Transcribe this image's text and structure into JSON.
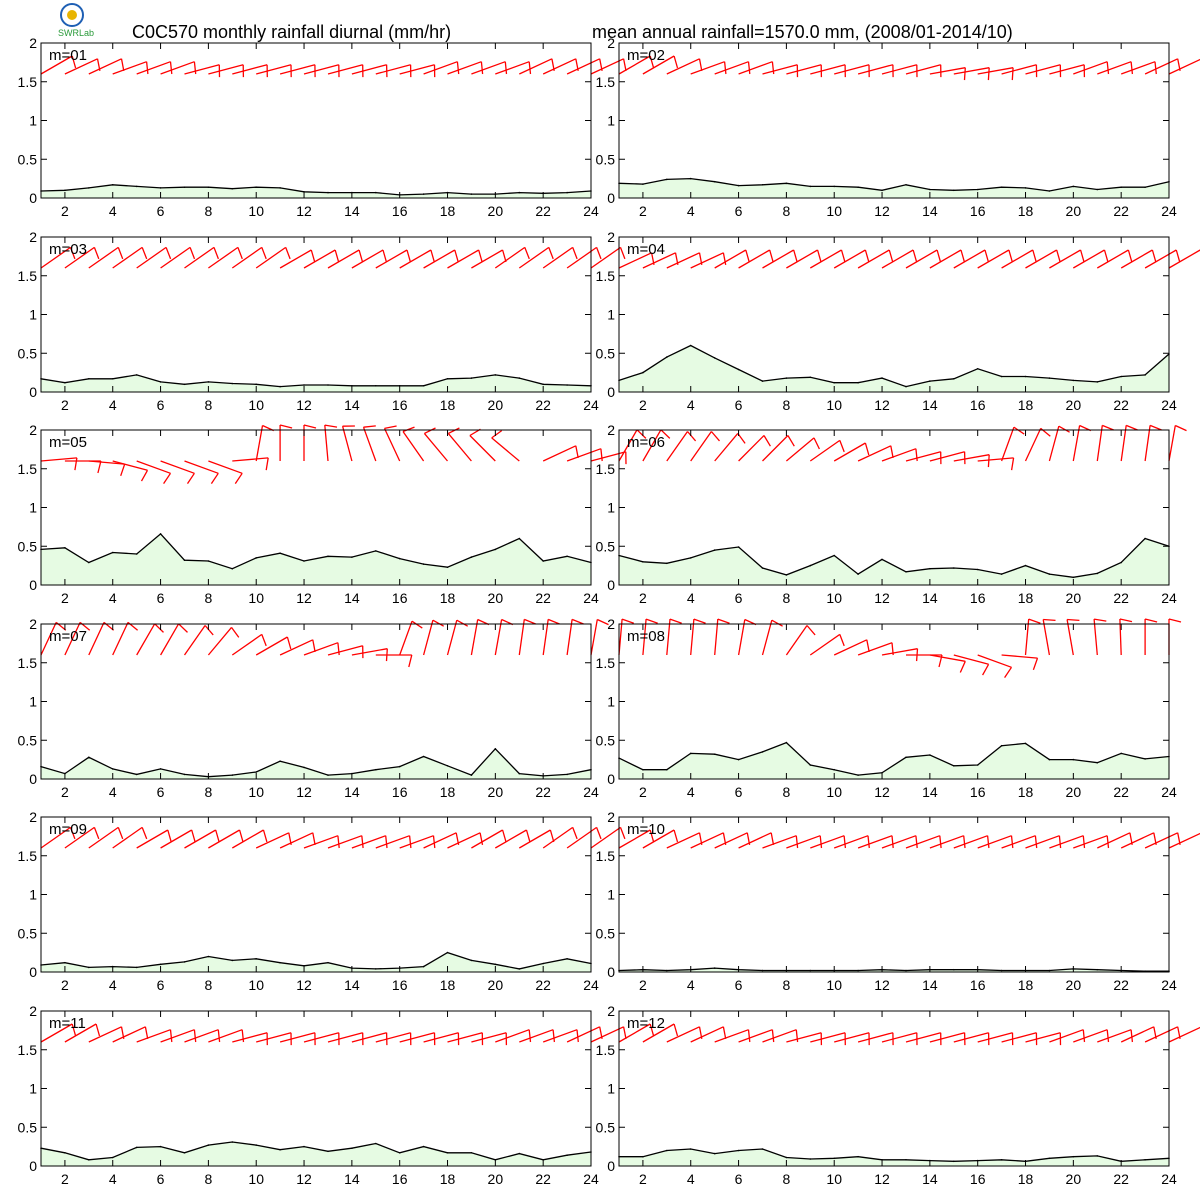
{
  "title_left": "C0C570 monthly rainfall diurnal (mm/hr)",
  "title_right": "mean annual rainfall=1570.0 mm, (2008/01-2014/10)",
  "logo": {
    "text": "SWRLab",
    "colors": [
      "#1e5fb4",
      "#e8b400",
      "#2a9a3a"
    ]
  },
  "colors": {
    "rain_fill": "#e6fbe3",
    "rain_line": "#000000",
    "wind_barb": "#ff0000",
    "frame": "#000000"
  },
  "chart_data": [
    {
      "type": "area",
      "label": "m=01",
      "x": [
        1,
        2,
        3,
        4,
        5,
        6,
        7,
        8,
        9,
        10,
        11,
        12,
        13,
        14,
        15,
        16,
        17,
        18,
        19,
        20,
        21,
        22,
        23,
        24
      ],
      "values": [
        0.09,
        0.1,
        0.13,
        0.17,
        0.15,
        0.13,
        0.14,
        0.14,
        0.12,
        0.14,
        0.13,
        0.08,
        0.07,
        0.07,
        0.07,
        0.04,
        0.05,
        0.07,
        0.05,
        0.05,
        0.07,
        0.06,
        0.07,
        0.09
      ],
      "wind_dir": [
        240,
        245,
        245,
        250,
        250,
        250,
        255,
        255,
        255,
        255,
        255,
        255,
        255,
        255,
        255,
        255,
        250,
        250,
        250,
        250,
        245,
        245,
        245,
        245
      ],
      "ylim": [
        0,
        2
      ],
      "yticks": [
        0,
        0.5,
        1,
        1.5,
        2
      ],
      "xticks": [
        2,
        4,
        6,
        8,
        10,
        12,
        14,
        16,
        18,
        20,
        22,
        24
      ]
    },
    {
      "type": "area",
      "label": "m=02",
      "x": [
        1,
        2,
        3,
        4,
        5,
        6,
        7,
        8,
        9,
        10,
        11,
        12,
        13,
        14,
        15,
        16,
        17,
        18,
        19,
        20,
        21,
        22,
        23,
        24
      ],
      "values": [
        0.19,
        0.18,
        0.24,
        0.25,
        0.21,
        0.16,
        0.17,
        0.19,
        0.15,
        0.15,
        0.14,
        0.1,
        0.17,
        0.11,
        0.1,
        0.11,
        0.14,
        0.13,
        0.09,
        0.15,
        0.11,
        0.14,
        0.14,
        0.21
      ],
      "wind_dir": [
        240,
        240,
        245,
        250,
        250,
        250,
        255,
        255,
        255,
        255,
        255,
        255,
        255,
        260,
        260,
        260,
        255,
        255,
        255,
        250,
        250,
        250,
        245,
        245
      ],
      "ylim": [
        0,
        2
      ],
      "yticks": [
        0,
        0.5,
        1,
        1.5,
        2
      ],
      "xticks": [
        2,
        4,
        6,
        8,
        10,
        12,
        14,
        16,
        18,
        20,
        22,
        24
      ]
    },
    {
      "type": "area",
      "label": "m=03",
      "x": [
        1,
        2,
        3,
        4,
        5,
        6,
        7,
        8,
        9,
        10,
        11,
        12,
        13,
        14,
        15,
        16,
        17,
        18,
        19,
        20,
        21,
        22,
        23,
        24
      ],
      "values": [
        0.17,
        0.12,
        0.17,
        0.17,
        0.22,
        0.13,
        0.1,
        0.13,
        0.11,
        0.1,
        0.07,
        0.09,
        0.09,
        0.08,
        0.08,
        0.08,
        0.08,
        0.17,
        0.18,
        0.22,
        0.18,
        0.1,
        0.09,
        0.08
      ],
      "wind_dir": [
        235,
        235,
        235,
        235,
        235,
        235,
        235,
        235,
        235,
        235,
        240,
        240,
        240,
        240,
        240,
        240,
        240,
        240,
        240,
        235,
        235,
        235,
        235,
        235
      ],
      "ylim": [
        0,
        2
      ],
      "yticks": [
        0,
        0.5,
        1,
        1.5,
        2
      ],
      "xticks": [
        2,
        4,
        6,
        8,
        10,
        12,
        14,
        16,
        18,
        20,
        22,
        24
      ]
    },
    {
      "type": "area",
      "label": "m=04",
      "x": [
        1,
        2,
        3,
        4,
        5,
        6,
        7,
        8,
        9,
        10,
        11,
        12,
        13,
        14,
        15,
        16,
        17,
        18,
        19,
        20,
        21,
        22,
        23,
        24
      ],
      "values": [
        0.15,
        0.25,
        0.45,
        0.6,
        0.44,
        0.29,
        0.14,
        0.18,
        0.19,
        0.12,
        0.12,
        0.18,
        0.07,
        0.14,
        0.17,
        0.3,
        0.2,
        0.2,
        0.18,
        0.15,
        0.13,
        0.2,
        0.22,
        0.49
      ],
      "wind_dir": [
        245,
        245,
        245,
        245,
        240,
        240,
        240,
        240,
        240,
        240,
        240,
        240,
        240,
        240,
        240,
        240,
        240,
        240,
        240,
        240,
        240,
        240,
        240,
        240
      ],
      "ylim": [
        0,
        2
      ],
      "yticks": [
        0,
        0.5,
        1,
        1.5,
        2
      ],
      "xticks": [
        2,
        4,
        6,
        8,
        10,
        12,
        14,
        16,
        18,
        20,
        22,
        24
      ]
    },
    {
      "type": "area",
      "label": "m=05",
      "x": [
        1,
        2,
        3,
        4,
        5,
        6,
        7,
        8,
        9,
        10,
        11,
        12,
        13,
        14,
        15,
        16,
        17,
        18,
        19,
        20,
        21,
        22,
        23,
        24
      ],
      "values": [
        0.46,
        0.48,
        0.29,
        0.42,
        0.4,
        0.66,
        0.32,
        0.31,
        0.21,
        0.35,
        0.41,
        0.31,
        0.37,
        0.36,
        0.44,
        0.34,
        0.27,
        0.23,
        0.36,
        0.46,
        0.6,
        0.31,
        0.37,
        0.29
      ],
      "wind_dir": [
        265,
        270,
        275,
        285,
        290,
        290,
        290,
        290,
        265,
        190,
        180,
        180,
        175,
        165,
        160,
        155,
        145,
        140,
        140,
        135,
        130,
        245,
        250,
        255
      ],
      "ylim": [
        0,
        2
      ],
      "yticks": [
        0,
        0.5,
        1,
        1.5,
        2
      ],
      "xticks": [
        2,
        4,
        6,
        8,
        10,
        12,
        14,
        16,
        18,
        20,
        22,
        24
      ]
    },
    {
      "type": "area",
      "label": "m=06",
      "x": [
        1,
        2,
        3,
        4,
        5,
        6,
        7,
        8,
        9,
        10,
        11,
        12,
        13,
        14,
        15,
        16,
        17,
        18,
        19,
        20,
        21,
        22,
        23,
        24
      ],
      "values": [
        0.38,
        0.3,
        0.28,
        0.35,
        0.45,
        0.49,
        0.22,
        0.13,
        0.25,
        0.38,
        0.14,
        0.33,
        0.17,
        0.21,
        0.22,
        0.2,
        0.14,
        0.25,
        0.14,
        0.1,
        0.15,
        0.29,
        0.6,
        0.5
      ],
      "wind_dir": [
        210,
        210,
        215,
        215,
        220,
        225,
        225,
        230,
        235,
        240,
        245,
        250,
        255,
        255,
        260,
        265,
        200,
        205,
        195,
        190,
        188,
        188,
        188,
        190
      ],
      "ylim": [
        0,
        2
      ],
      "yticks": [
        0,
        0.5,
        1,
        1.5,
        2
      ],
      "xticks": [
        2,
        4,
        6,
        8,
        10,
        12,
        14,
        16,
        18,
        20,
        22,
        24
      ]
    },
    {
      "type": "area",
      "label": "m=07",
      "x": [
        1,
        2,
        3,
        4,
        5,
        6,
        7,
        8,
        9,
        10,
        11,
        12,
        13,
        14,
        15,
        16,
        17,
        18,
        19,
        20,
        21,
        22,
        23,
        24
      ],
      "values": [
        0.16,
        0.07,
        0.28,
        0.13,
        0.06,
        0.13,
        0.06,
        0.03,
        0.05,
        0.09,
        0.23,
        0.15,
        0.05,
        0.07,
        0.12,
        0.16,
        0.29,
        0.17,
        0.05,
        0.39,
        0.07,
        0.04,
        0.06,
        0.12
      ],
      "wind_dir": [
        205,
        205,
        205,
        205,
        210,
        210,
        215,
        220,
        235,
        240,
        245,
        250,
        255,
        260,
        270,
        200,
        195,
        195,
        190,
        190,
        188,
        188,
        188,
        190
      ],
      "ylim": [
        0,
        2
      ],
      "yticks": [
        0,
        0.5,
        1,
        1.5,
        2
      ],
      "xticks": [
        2,
        4,
        6,
        8,
        10,
        12,
        14,
        16,
        18,
        20,
        22,
        24
      ]
    },
    {
      "type": "area",
      "label": "m=08",
      "x": [
        1,
        2,
        3,
        4,
        5,
        6,
        7,
        8,
        9,
        10,
        11,
        12,
        13,
        14,
        15,
        16,
        17,
        18,
        19,
        20,
        21,
        22,
        23,
        24
      ],
      "values": [
        0.27,
        0.12,
        0.12,
        0.33,
        0.32,
        0.25,
        0.35,
        0.47,
        0.18,
        0.12,
        0.05,
        0.08,
        0.28,
        0.31,
        0.17,
        0.18,
        0.43,
        0.46,
        0.25,
        0.25,
        0.21,
        0.33,
        0.26,
        0.29
      ],
      "wind_dir": [
        185,
        185,
        185,
        185,
        185,
        190,
        195,
        215,
        235,
        245,
        250,
        260,
        270,
        280,
        285,
        290,
        275,
        185,
        170,
        170,
        175,
        178,
        180,
        180
      ],
      "ylim": [
        0,
        2
      ],
      "yticks": [
        0,
        0.5,
        1,
        1.5,
        2
      ],
      "xticks": [
        2,
        4,
        6,
        8,
        10,
        12,
        14,
        16,
        18,
        20,
        22,
        24
      ]
    },
    {
      "type": "area",
      "label": "m=09",
      "x": [
        1,
        2,
        3,
        4,
        5,
        6,
        7,
        8,
        9,
        10,
        11,
        12,
        13,
        14,
        15,
        16,
        17,
        18,
        19,
        20,
        21,
        22,
        23,
        24
      ],
      "values": [
        0.09,
        0.12,
        0.06,
        0.07,
        0.06,
        0.1,
        0.13,
        0.2,
        0.15,
        0.17,
        0.12,
        0.08,
        0.12,
        0.05,
        0.04,
        0.05,
        0.07,
        0.25,
        0.15,
        0.1,
        0.04,
        0.11,
        0.17,
        0.11
      ],
      "wind_dir": [
        235,
        235,
        235,
        235,
        240,
        240,
        240,
        240,
        240,
        245,
        245,
        250,
        250,
        250,
        250,
        250,
        245,
        245,
        240,
        240,
        240,
        235,
        235,
        235
      ],
      "ylim": [
        0,
        2
      ],
      "yticks": [
        0,
        0.5,
        1,
        1.5,
        2
      ],
      "xticks": [
        2,
        4,
        6,
        8,
        10,
        12,
        14,
        16,
        18,
        20,
        22,
        24
      ]
    },
    {
      "type": "area",
      "label": "m=10",
      "x": [
        1,
        2,
        3,
        4,
        5,
        6,
        7,
        8,
        9,
        10,
        11,
        12,
        13,
        14,
        15,
        16,
        17,
        18,
        19,
        20,
        21,
        22,
        23,
        24
      ],
      "values": [
        0.02,
        0.03,
        0.02,
        0.03,
        0.05,
        0.03,
        0.02,
        0.02,
        0.02,
        0.02,
        0.02,
        0.03,
        0.02,
        0.03,
        0.03,
        0.03,
        0.02,
        0.02,
        0.02,
        0.04,
        0.03,
        0.02,
        0.01,
        0.01
      ],
      "wind_dir": [
        240,
        240,
        245,
        245,
        245,
        245,
        250,
        250,
        250,
        250,
        250,
        250,
        250,
        250,
        250,
        250,
        250,
        250,
        250,
        250,
        245,
        245,
        245,
        245
      ],
      "ylim": [
        0,
        2
      ],
      "yticks": [
        0,
        0.5,
        1,
        1.5,
        2
      ],
      "xticks": [
        2,
        4,
        6,
        8,
        10,
        12,
        14,
        16,
        18,
        20,
        22,
        24
      ]
    },
    {
      "type": "area",
      "label": "m=11",
      "x": [
        1,
        2,
        3,
        4,
        5,
        6,
        7,
        8,
        9,
        10,
        11,
        12,
        13,
        14,
        15,
        16,
        17,
        18,
        19,
        20,
        21,
        22,
        23,
        24
      ],
      "values": [
        0.23,
        0.17,
        0.08,
        0.11,
        0.24,
        0.25,
        0.17,
        0.27,
        0.31,
        0.27,
        0.21,
        0.25,
        0.19,
        0.23,
        0.29,
        0.17,
        0.25,
        0.17,
        0.17,
        0.08,
        0.16,
        0.08,
        0.14,
        0.18
      ],
      "wind_dir": [
        240,
        240,
        245,
        245,
        250,
        250,
        250,
        250,
        255,
        255,
        255,
        255,
        255,
        255,
        255,
        255,
        255,
        255,
        255,
        250,
        250,
        250,
        245,
        245
      ],
      "ylim": [
        0,
        2
      ],
      "yticks": [
        0,
        0.5,
        1,
        1.5,
        2
      ],
      "xticks": [
        2,
        4,
        6,
        8,
        10,
        12,
        14,
        16,
        18,
        20,
        22,
        24
      ]
    },
    {
      "type": "area",
      "label": "m=12",
      "x": [
        1,
        2,
        3,
        4,
        5,
        6,
        7,
        8,
        9,
        10,
        11,
        12,
        13,
        14,
        15,
        16,
        17,
        18,
        19,
        20,
        21,
        22,
        23,
        24
      ],
      "values": [
        0.12,
        0.12,
        0.2,
        0.22,
        0.16,
        0.2,
        0.22,
        0.11,
        0.09,
        0.1,
        0.12,
        0.08,
        0.08,
        0.07,
        0.06,
        0.07,
        0.08,
        0.06,
        0.1,
        0.12,
        0.13,
        0.06,
        0.08,
        0.1
      ],
      "wind_dir": [
        240,
        240,
        245,
        245,
        250,
        250,
        250,
        255,
        255,
        255,
        255,
        255,
        255,
        255,
        255,
        255,
        255,
        255,
        250,
        250,
        250,
        245,
        245,
        245
      ],
      "ylim": [
        0,
        2
      ],
      "yticks": [
        0,
        0.5,
        1,
        1.5,
        2
      ],
      "xticks": [
        2,
        4,
        6,
        8,
        10,
        12,
        14,
        16,
        18,
        20,
        22,
        24
      ]
    }
  ]
}
